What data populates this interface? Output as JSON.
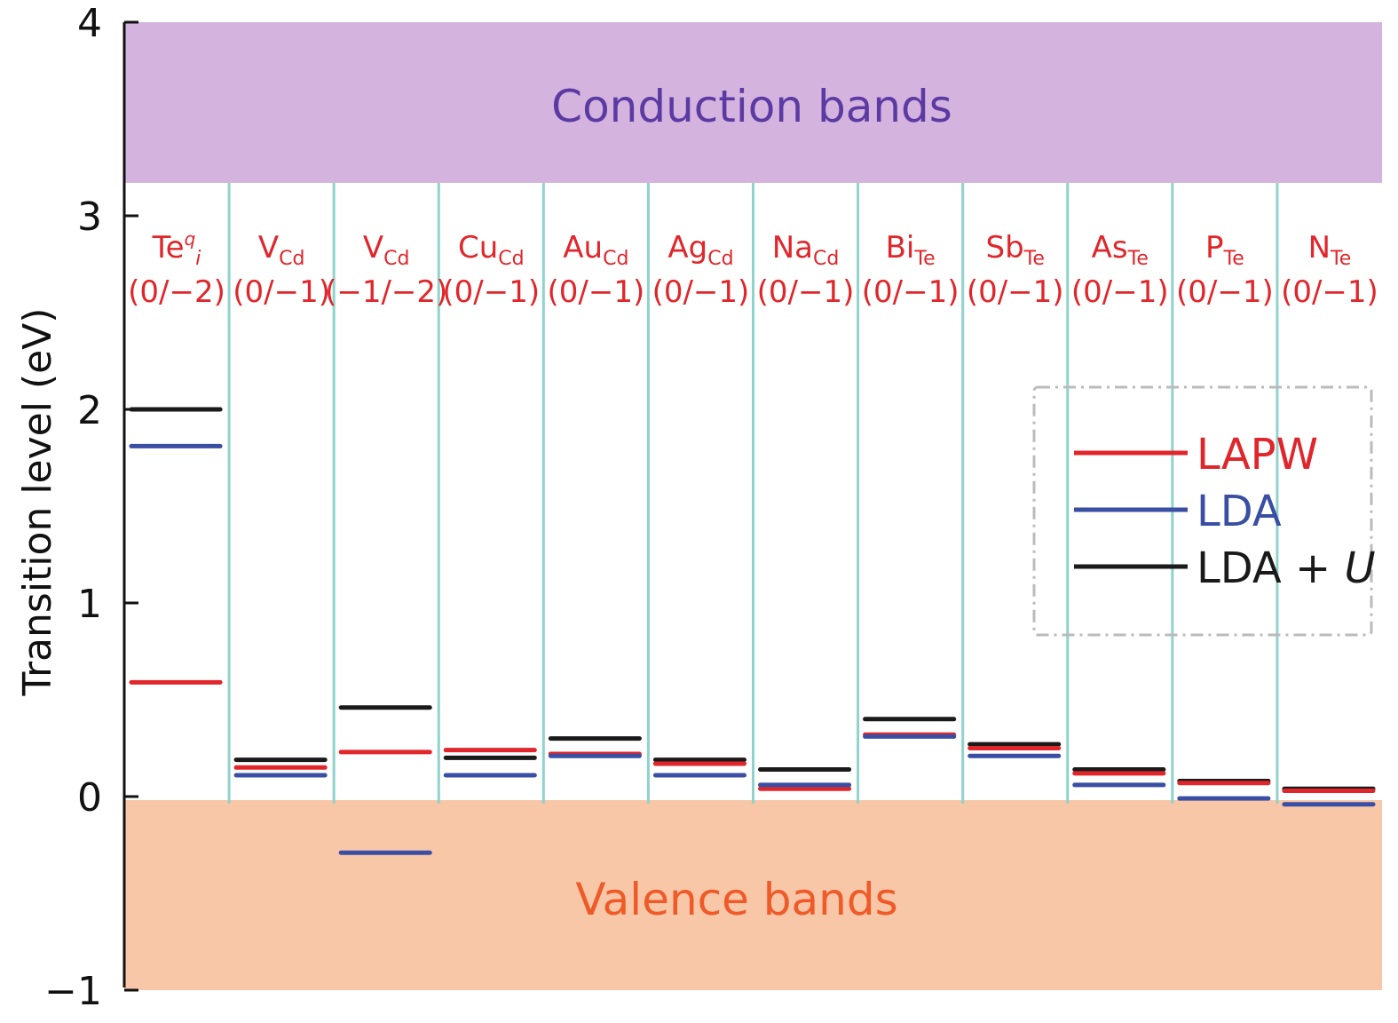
{
  "chart_data": {
    "type": "line",
    "title": "",
    "xlabel": "",
    "ylabel": "Transition level (eV)",
    "ylim": [
      -1,
      4
    ],
    "yticks": [
      "4",
      "3",
      "2",
      "1",
      "0",
      "−1"
    ],
    "ytick_values": [
      4,
      3,
      2,
      1,
      0,
      -1
    ],
    "bands": {
      "conduction": {
        "label": "Conduction bands",
        "range": [
          3.17,
          4
        ],
        "color": "#d4b3de",
        "text_color": "#5b3aa3"
      },
      "valence": {
        "label": "Valence bands",
        "range": [
          -1,
          0
        ],
        "color": "#f7c7a8",
        "text_color": "#ef5a28"
      }
    },
    "categories": [
      {
        "base": "Te",
        "sub": "i",
        "sup": "q",
        "level": "(0/−2)"
      },
      {
        "base": "V",
        "sub": "Cd",
        "sup": "",
        "level": "(0/−1)"
      },
      {
        "base": "V",
        "sub": "Cd",
        "sup": "",
        "level": "(−1/−2)"
      },
      {
        "base": "Cu",
        "sub": "Cd",
        "sup": "",
        "level": "(0/−1)"
      },
      {
        "base": "Au",
        "sub": "Cd",
        "sup": "",
        "level": "(0/−1)"
      },
      {
        "base": "Ag",
        "sub": "Cd",
        "sup": "",
        "level": "(0/−1)"
      },
      {
        "base": "Na",
        "sub": "Cd",
        "sup": "",
        "level": "(0/−1)"
      },
      {
        "base": "Bi",
        "sub": "Te",
        "sup": "",
        "level": "(0/−1)"
      },
      {
        "base": "Sb",
        "sub": "Te",
        "sup": "",
        "level": "(0/−1)"
      },
      {
        "base": "As",
        "sub": "Te",
        "sup": "",
        "level": "(0/−1)"
      },
      {
        "base": "P",
        "sub": "Te",
        "sup": "",
        "level": "(0/−1)"
      },
      {
        "base": "N",
        "sub": "Te",
        "sup": "",
        "level": "(0/−1)"
      }
    ],
    "series": [
      {
        "name": "LAPW",
        "color": "#e0262b",
        "values": [
          0.59,
          0.15,
          0.23,
          0.24,
          0.22,
          0.17,
          0.04,
          0.32,
          0.25,
          0.12,
          0.07,
          0.03
        ]
      },
      {
        "name": "LDA",
        "color": "#3a4fa3",
        "values": [
          1.81,
          0.11,
          -0.29,
          0.11,
          0.21,
          0.11,
          0.06,
          0.31,
          0.21,
          0.06,
          -0.01,
          -0.04
        ]
      },
      {
        "name": "LDA + U",
        "color": "#1a1a1a",
        "values": [
          2.0,
          0.19,
          0.46,
          0.2,
          0.3,
          0.19,
          0.14,
          0.4,
          0.27,
          0.14,
          0.08,
          0.04
        ]
      }
    ],
    "legend": {
      "placement": "right",
      "entries": [
        "LAPW",
        "LDA",
        "LDA + U"
      ]
    },
    "grid": false
  }
}
